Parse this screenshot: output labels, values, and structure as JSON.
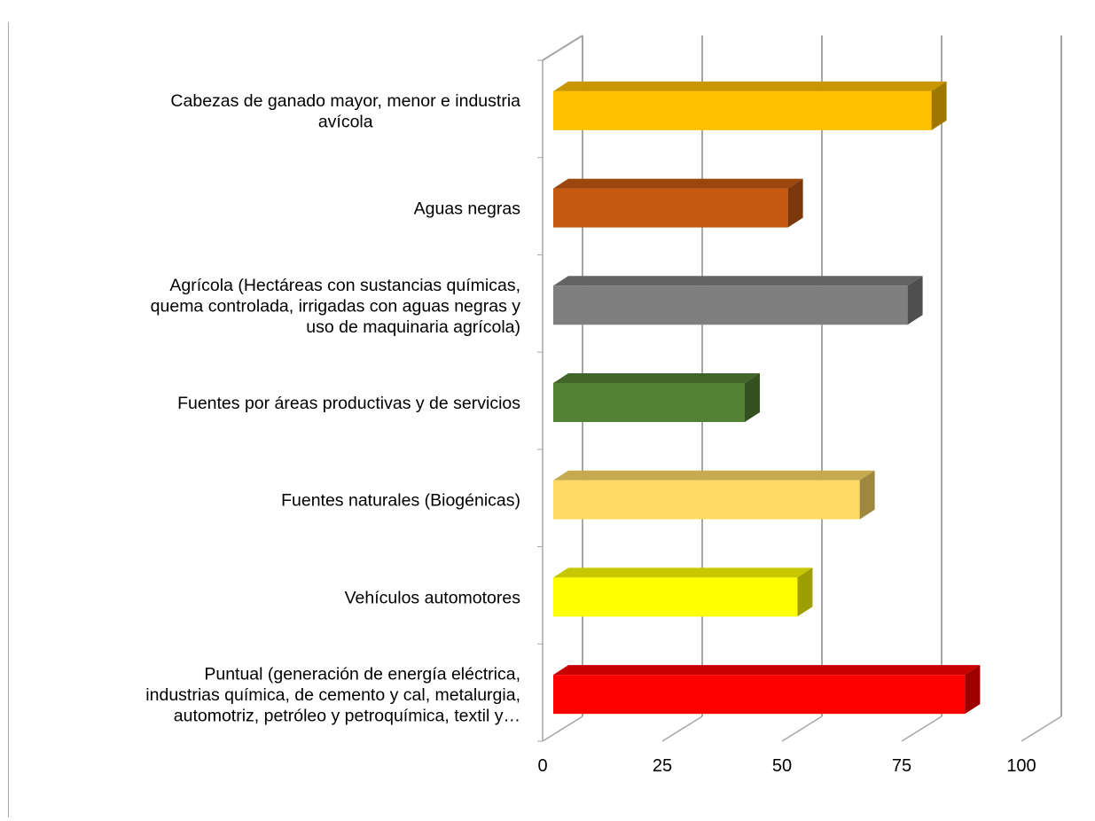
{
  "chart_data": {
    "type": "bar",
    "orientation": "horizontal",
    "style": "3d",
    "categories": [
      "Cabezas de ganado mayor, menor e industria avícola",
      "Aguas negras",
      "Agrícola (Hectáreas con sustancias químicas, quema controlada, irrigadas con aguas negras y uso de maquinaria agrícola)",
      "Fuentes por áreas productivas y de servicios",
      "Fuentes naturales (Biogénicas)",
      "Vehículos automotores",
      "Puntual (generación de energía eléctrica, industrias química, de cemento y cal, metalurgia, automotriz, petróleo y petroquímica, textil y…"
    ],
    "category_label_lines": [
      [
        "Cabezas de ganado mayor, menor e industria",
        "avícola"
      ],
      [
        "Aguas negras"
      ],
      [
        "Agrícola (Hectáreas con sustancias químicas,",
        "quema controlada, irrigadas con aguas negras y",
        "uso de maquinaria agrícola)"
      ],
      [
        "Fuentes por áreas productivas y de servicios"
      ],
      [
        "Fuentes naturales (Biogénicas)"
      ],
      [
        "Vehículos automotores"
      ],
      [
        "Puntual (generación de energía eléctrica,",
        "industrias química, de cemento y cal, metalurgia,",
        "automotriz, petróleo y petroquímica, textil y…"
      ]
    ],
    "values": [
      79,
      49,
      74,
      40,
      64,
      51,
      86
    ],
    "colors": [
      "#FFC000",
      "#C55A11",
      "#7F7F7F",
      "#548235",
      "#FFD966",
      "#FFFF00",
      "#FF0000"
    ],
    "xlim": [
      0,
      100
    ],
    "xticks": [
      "0",
      "25",
      "50",
      "75",
      "100"
    ],
    "grid": true,
    "legend": "none",
    "title": "",
    "xlabel": "",
    "ylabel": ""
  }
}
